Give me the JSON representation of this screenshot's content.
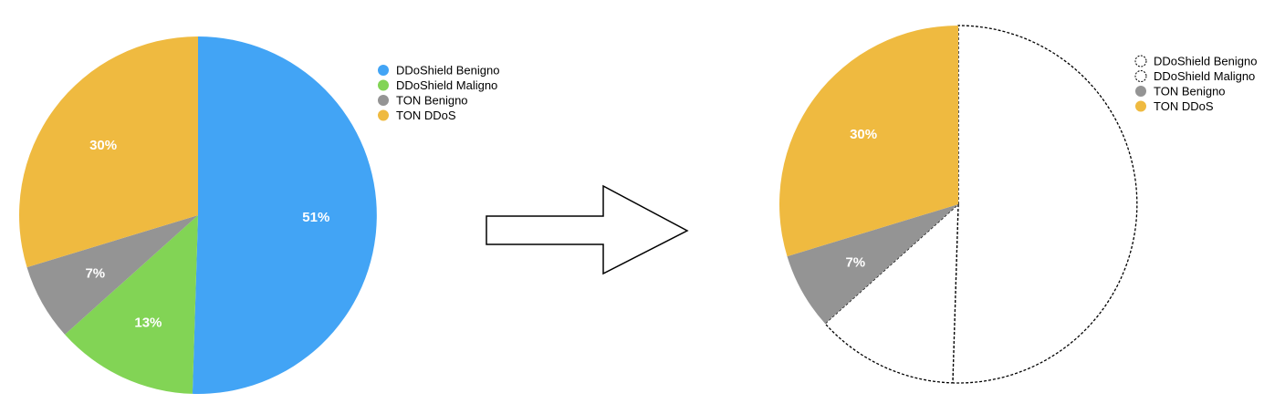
{
  "chart_data": [
    {
      "type": "pie",
      "title": "",
      "legend_position": "top-right",
      "series": [
        {
          "name": "DDoShield Benigno",
          "value": 51,
          "label": "51%",
          "color": "#42A4F5",
          "style": "filled"
        },
        {
          "name": "DDoShield Maligno",
          "value": 13,
          "label": "13%",
          "color": "#82D455",
          "style": "filled"
        },
        {
          "name": "TON Benigno",
          "value": 7,
          "label": "7%",
          "color": "#949494",
          "style": "filled"
        },
        {
          "name": "TON DDoS",
          "value": 30,
          "label": "30%",
          "color": "#EFBA40",
          "style": "filled"
        }
      ]
    },
    {
      "type": "pie",
      "title": "",
      "legend_position": "top-right",
      "series": [
        {
          "name": "DDoShield Benigno",
          "value": 51,
          "label": "",
          "color": "#ffffff",
          "style": "dashed-outline"
        },
        {
          "name": "DDoShield Maligno",
          "value": 13,
          "label": "",
          "color": "#ffffff",
          "style": "dashed-outline"
        },
        {
          "name": "TON Benigno",
          "value": 7,
          "label": "7%",
          "color": "#949494",
          "style": "filled"
        },
        {
          "name": "TON DDoS",
          "value": 30,
          "label": "30%",
          "color": "#EFBA40",
          "style": "filled"
        }
      ]
    }
  ],
  "arrow": {
    "direction": "right",
    "meaning": "transition"
  }
}
